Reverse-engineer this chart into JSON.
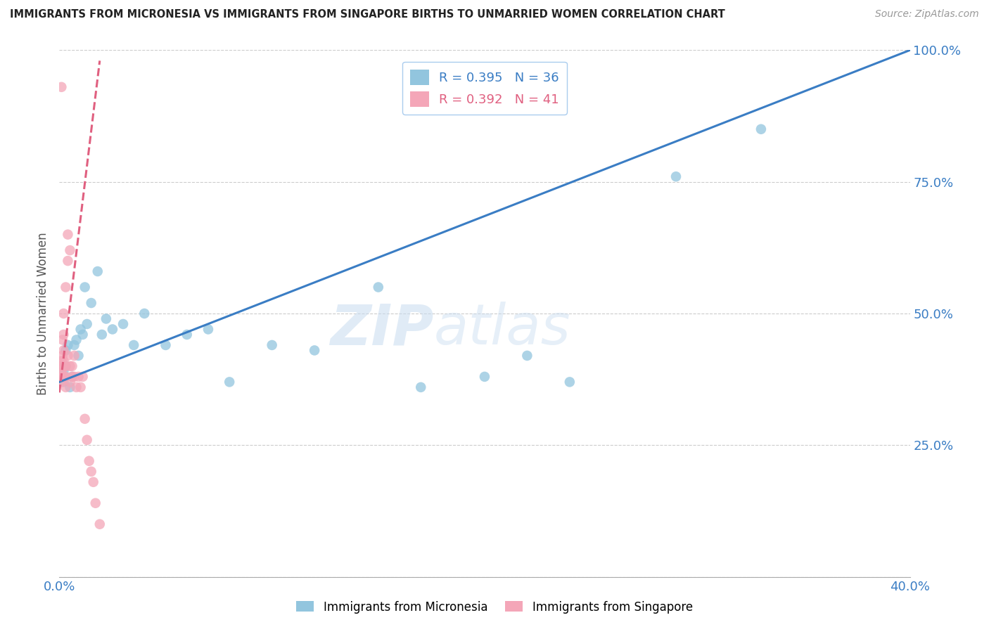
{
  "title": "IMMIGRANTS FROM MICRONESIA VS IMMIGRANTS FROM SINGAPORE BIRTHS TO UNMARRIED WOMEN CORRELATION CHART",
  "source": "Source: ZipAtlas.com",
  "ylabel": "Births to Unmarried Women",
  "xlabel_micronesia": "Immigrants from Micronesia",
  "xlabel_singapore": "Immigrants from Singapore",
  "xlim": [
    0.0,
    0.4
  ],
  "ylim": [
    0.0,
    1.0
  ],
  "R_micronesia": 0.395,
  "N_micronesia": 36,
  "R_singapore": 0.392,
  "N_singapore": 41,
  "color_micronesia": "#92C5DE",
  "color_singapore": "#F4A6B8",
  "trendline_micronesia": "#3A7DC4",
  "trendline_singapore": "#E06080",
  "watermark_zip": "ZIP",
  "watermark_atlas": "atlas",
  "micronesia_x": [
    0.001,
    0.002,
    0.002,
    0.003,
    0.003,
    0.004,
    0.005,
    0.006,
    0.007,
    0.008,
    0.009,
    0.01,
    0.011,
    0.012,
    0.013,
    0.015,
    0.018,
    0.02,
    0.022,
    0.025,
    0.03,
    0.035,
    0.04,
    0.05,
    0.06,
    0.07,
    0.08,
    0.1,
    0.12,
    0.15,
    0.17,
    0.2,
    0.22,
    0.24,
    0.29,
    0.33
  ],
  "micronesia_y": [
    0.38,
    0.37,
    0.39,
    0.4,
    0.43,
    0.44,
    0.36,
    0.38,
    0.44,
    0.45,
    0.42,
    0.47,
    0.46,
    0.55,
    0.48,
    0.52,
    0.58,
    0.46,
    0.49,
    0.47,
    0.48,
    0.44,
    0.5,
    0.44,
    0.46,
    0.47,
    0.37,
    0.44,
    0.43,
    0.55,
    0.36,
    0.38,
    0.42,
    0.37,
    0.76,
    0.85
  ],
  "singapore_x": [
    0.0005,
    0.0005,
    0.001,
    0.001,
    0.001,
    0.001,
    0.001,
    0.001,
    0.0015,
    0.0015,
    0.002,
    0.002,
    0.002,
    0.002,
    0.002,
    0.002,
    0.003,
    0.003,
    0.003,
    0.003,
    0.004,
    0.004,
    0.004,
    0.005,
    0.005,
    0.005,
    0.006,
    0.006,
    0.007,
    0.007,
    0.008,
    0.009,
    0.01,
    0.011,
    0.012,
    0.013,
    0.014,
    0.015,
    0.016,
    0.017,
    0.019
  ],
  "singapore_y": [
    0.38,
    0.4,
    0.37,
    0.38,
    0.39,
    0.4,
    0.41,
    0.93,
    0.42,
    0.45,
    0.38,
    0.4,
    0.41,
    0.43,
    0.46,
    0.5,
    0.36,
    0.38,
    0.4,
    0.55,
    0.42,
    0.6,
    0.65,
    0.37,
    0.4,
    0.62,
    0.38,
    0.4,
    0.38,
    0.42,
    0.36,
    0.38,
    0.36,
    0.38,
    0.3,
    0.26,
    0.22,
    0.2,
    0.18,
    0.14,
    0.1
  ],
  "mic_trend_x0": 0.0,
  "mic_trend_x1": 0.4,
  "mic_trend_y0": 0.37,
  "mic_trend_y1": 1.0,
  "sin_trend_x0": 0.0,
  "sin_trend_x1": 0.019,
  "sin_trend_y0": 0.35,
  "sin_trend_y1": 0.98
}
